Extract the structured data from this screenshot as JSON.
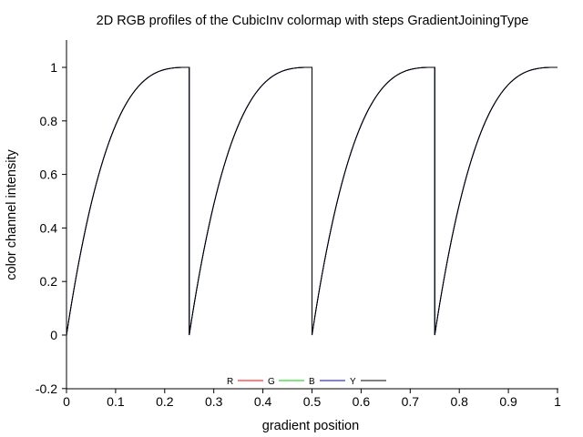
{
  "chart_data": {
    "type": "line",
    "title": "2D RGB profiles of the CubicInv colormap with steps GradientJoiningType",
    "xlabel": "gradient position",
    "ylabel": "color channel intensity",
    "xlim": [
      0,
      1
    ],
    "ylim": [
      -0.2,
      1.1
    ],
    "xticks": [
      0,
      0.1,
      0.2,
      0.3,
      0.4,
      0.5,
      0.6,
      0.7,
      0.8,
      0.9,
      1
    ],
    "xtick_labels": [
      "0",
      "0.1",
      "0.2",
      "0.3",
      "0.4",
      "0.5",
      "0.6",
      "0.7",
      "0.8",
      "0.9",
      "1"
    ],
    "yticks": [
      -0.2,
      0,
      0.2,
      0.4,
      0.6,
      0.8,
      1
    ],
    "ytick_labels": [
      "-0.2",
      "0",
      "0.2",
      "0.4",
      "0.6",
      "0.8",
      "1"
    ],
    "grid": false,
    "legend_position": "bottom-center",
    "series": [
      {
        "name": "R",
        "color": "#ff0000",
        "x": [
          0,
          0.025,
          0.05,
          0.075,
          0.1,
          0.125,
          0.15,
          0.175,
          0.2,
          0.225,
          0.25,
          0.25,
          0.275,
          0.3,
          0.325,
          0.35,
          0.375,
          0.4,
          0.425,
          0.45,
          0.475,
          0.5,
          0.5,
          0.525,
          0.55,
          0.575,
          0.6,
          0.625,
          0.65,
          0.675,
          0.7,
          0.725,
          0.75,
          0.75,
          0.775,
          0.8,
          0.825,
          0.85,
          0.875,
          0.9,
          0.925,
          0.95,
          0.975,
          1
        ],
        "y": [
          0,
          0.271,
          0.488,
          0.657,
          0.784,
          0.875,
          0.936,
          0.973,
          0.992,
          0.999,
          1,
          0,
          0.271,
          0.488,
          0.657,
          0.784,
          0.875,
          0.936,
          0.973,
          0.992,
          0.999,
          1,
          0,
          0.271,
          0.488,
          0.657,
          0.784,
          0.875,
          0.936,
          0.973,
          0.992,
          0.999,
          1,
          0,
          0.271,
          0.488,
          0.657,
          0.784,
          0.875,
          0.936,
          0.973,
          0.992,
          0.999,
          1
        ]
      },
      {
        "name": "G",
        "color": "#00cc00",
        "x": [
          0,
          0.025,
          0.05,
          0.075,
          0.1,
          0.125,
          0.15,
          0.175,
          0.2,
          0.225,
          0.25,
          0.25,
          0.275,
          0.3,
          0.325,
          0.35,
          0.375,
          0.4,
          0.425,
          0.45,
          0.475,
          0.5,
          0.5,
          0.525,
          0.55,
          0.575,
          0.6,
          0.625,
          0.65,
          0.675,
          0.7,
          0.725,
          0.75,
          0.75,
          0.775,
          0.8,
          0.825,
          0.85,
          0.875,
          0.9,
          0.925,
          0.95,
          0.975,
          1
        ],
        "y": [
          0,
          0.271,
          0.488,
          0.657,
          0.784,
          0.875,
          0.936,
          0.973,
          0.992,
          0.999,
          1,
          0,
          0.271,
          0.488,
          0.657,
          0.784,
          0.875,
          0.936,
          0.973,
          0.992,
          0.999,
          1,
          0,
          0.271,
          0.488,
          0.657,
          0.784,
          0.875,
          0.936,
          0.973,
          0.992,
          0.999,
          1,
          0,
          0.271,
          0.488,
          0.657,
          0.784,
          0.875,
          0.936,
          0.973,
          0.992,
          0.999,
          1
        ]
      },
      {
        "name": "B",
        "color": "#0000cc",
        "x": [
          0,
          0.025,
          0.05,
          0.075,
          0.1,
          0.125,
          0.15,
          0.175,
          0.2,
          0.225,
          0.25,
          0.25,
          0.275,
          0.3,
          0.325,
          0.35,
          0.375,
          0.4,
          0.425,
          0.45,
          0.475,
          0.5,
          0.5,
          0.525,
          0.55,
          0.575,
          0.6,
          0.625,
          0.65,
          0.675,
          0.7,
          0.725,
          0.75,
          0.75,
          0.775,
          0.8,
          0.825,
          0.85,
          0.875,
          0.9,
          0.925,
          0.95,
          0.975,
          1
        ],
        "y": [
          0,
          0.271,
          0.488,
          0.657,
          0.784,
          0.875,
          0.936,
          0.973,
          0.992,
          0.999,
          1,
          0,
          0.271,
          0.488,
          0.657,
          0.784,
          0.875,
          0.936,
          0.973,
          0.992,
          0.999,
          1,
          0,
          0.271,
          0.488,
          0.657,
          0.784,
          0.875,
          0.936,
          0.973,
          0.992,
          0.999,
          1,
          0,
          0.271,
          0.488,
          0.657,
          0.784,
          0.875,
          0.936,
          0.973,
          0.992,
          0.999,
          1
        ]
      },
      {
        "name": "Y",
        "color": "#000000",
        "x": [
          0,
          0.025,
          0.05,
          0.075,
          0.1,
          0.125,
          0.15,
          0.175,
          0.2,
          0.225,
          0.25,
          0.25,
          0.275,
          0.3,
          0.325,
          0.35,
          0.375,
          0.4,
          0.425,
          0.45,
          0.475,
          0.5,
          0.5,
          0.525,
          0.55,
          0.575,
          0.6,
          0.625,
          0.65,
          0.675,
          0.7,
          0.725,
          0.75,
          0.75,
          0.775,
          0.8,
          0.825,
          0.85,
          0.875,
          0.9,
          0.925,
          0.95,
          0.975,
          1
        ],
        "y": [
          0,
          0.271,
          0.488,
          0.657,
          0.784,
          0.875,
          0.936,
          0.973,
          0.992,
          0.999,
          1,
          0,
          0.271,
          0.488,
          0.657,
          0.784,
          0.875,
          0.936,
          0.973,
          0.992,
          0.999,
          1,
          0,
          0.271,
          0.488,
          0.657,
          0.784,
          0.875,
          0.936,
          0.973,
          0.992,
          0.999,
          1,
          0,
          0.271,
          0.488,
          0.657,
          0.784,
          0.875,
          0.936,
          0.973,
          0.992,
          0.999,
          1
        ]
      }
    ]
  }
}
